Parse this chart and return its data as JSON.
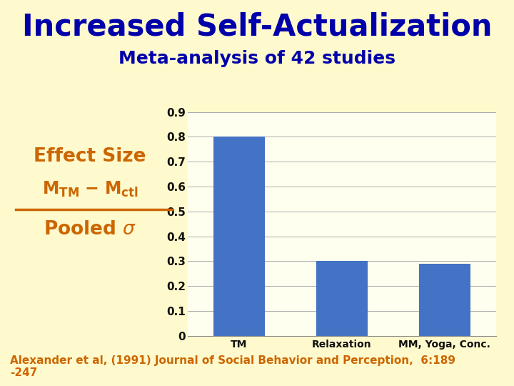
{
  "title": "Increased Self-Actualization",
  "subtitle": "Meta-analysis of 42 studies",
  "categories": [
    "TM",
    "Relaxation",
    "MM, Yoga, Conc."
  ],
  "values": [
    0.8,
    0.3,
    0.29
  ],
  "bar_color": "#4472C4",
  "background_color": "#FFFACD",
  "title_color": "#0000AA",
  "subtitle_color": "#0000AA",
  "left_label_color": "#CC6600",
  "divider_color": "#CC6600",
  "citation_color": "#CC6600",
  "citation": "Alexander et al, (1991) Journal of Social Behavior and Perception,  6:189\n-247",
  "ylim": [
    0,
    0.9
  ],
  "yticks": [
    0,
    0.1,
    0.2,
    0.3,
    0.4,
    0.5,
    0.6,
    0.7,
    0.8,
    0.9
  ],
  "grid_color": "#AAAAAA",
  "chart_bg": "#FFFFF0",
  "title_fontsize": 30,
  "subtitle_fontsize": 18,
  "label_fontsize": 19,
  "sublabel_fontsize": 17
}
